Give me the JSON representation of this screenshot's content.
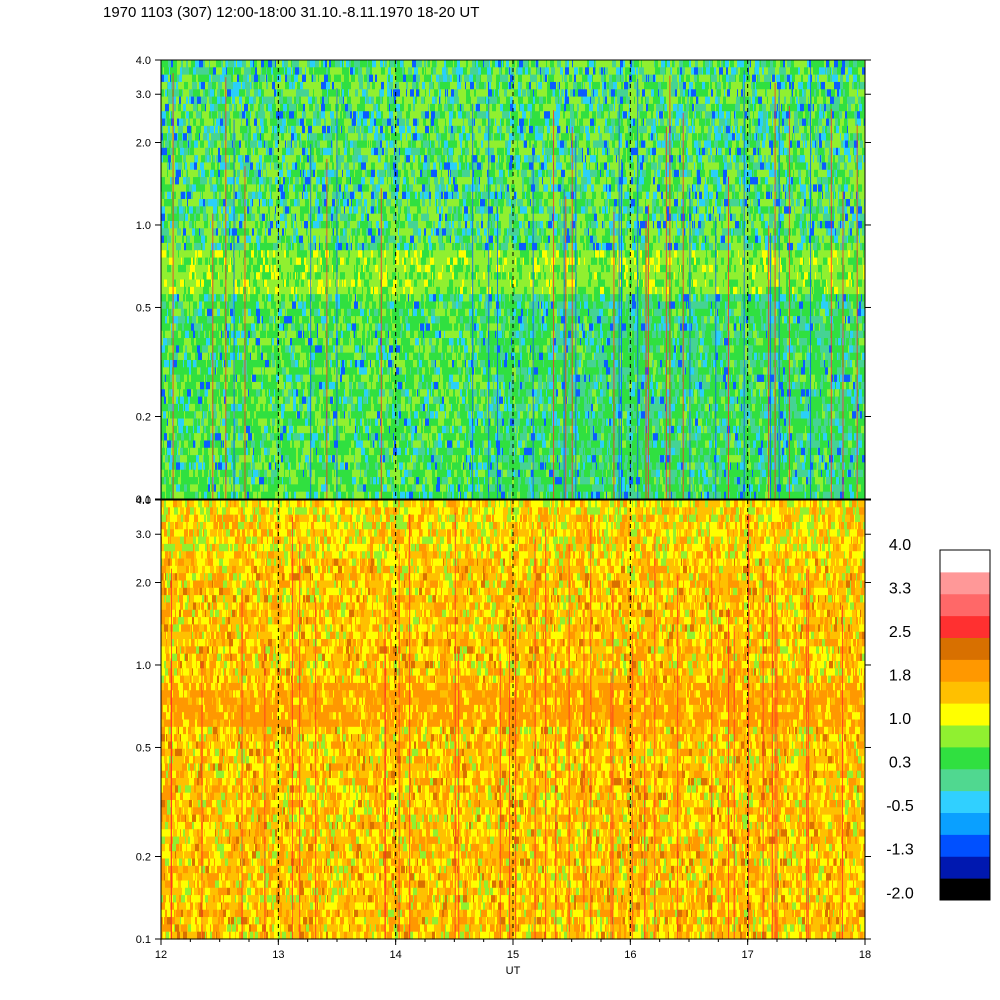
{
  "title": "1970 1103 (307) 12:00-18:00 31.10.-8.11.1970  18-20 UT",
  "chart_data": {
    "type": "heatmap",
    "panels": [
      {
        "name": "",
        "dominant_levels": [
          "green",
          "yellow-green",
          "cyan",
          "blue"
        ],
        "ylim": [
          0.1,
          4.0
        ],
        "yscale": "log",
        "yticks": [
          0.1,
          0.2,
          0.5,
          1.0,
          2.0,
          3.0,
          4.0
        ],
        "ytick_labels": [
          "0.1",
          "0.2",
          "0.5",
          "1.0",
          "2.0",
          "3.0",
          "4.0"
        ]
      },
      {
        "name": "",
        "dominant_levels": [
          "orange",
          "amber",
          "yellow",
          "yellow-green"
        ],
        "ylim": [
          0.1,
          4.0
        ],
        "yscale": "log",
        "yticks": [
          0.1,
          0.2,
          0.5,
          1.0,
          2.0,
          3.0,
          4.0
        ],
        "ytick_labels": [
          "0.1",
          "0.2",
          "0.5",
          "1.0",
          "2.0",
          "3.0",
          "4.0"
        ]
      }
    ],
    "x": {
      "label": "UT",
      "range": [
        12,
        18
      ],
      "ticks": [
        12,
        13,
        14,
        15,
        16,
        17,
        18
      ],
      "tick_labels": [
        "12",
        "13",
        "14",
        "15",
        "16",
        "17",
        "18"
      ],
      "dashed_hour_lines": [
        13,
        14,
        15,
        16,
        17
      ]
    },
    "colorbar": {
      "labels": [
        "4.0",
        "3.3",
        "2.5",
        "1.8",
        "1.0",
        "0.3",
        "-0.5",
        "-1.3",
        "-2.0"
      ],
      "colors": [
        "#000000",
        "#0018b0",
        "#0050ff",
        "#0aa0ff",
        "#30d0ff",
        "#50d890",
        "#30e040",
        "#90f030",
        "#ffff00",
        "#ffc000",
        "#ff9800",
        "#d87000",
        "#ff3030",
        "#ff6868",
        "#ff9898",
        "#ffffff"
      ]
    }
  }
}
